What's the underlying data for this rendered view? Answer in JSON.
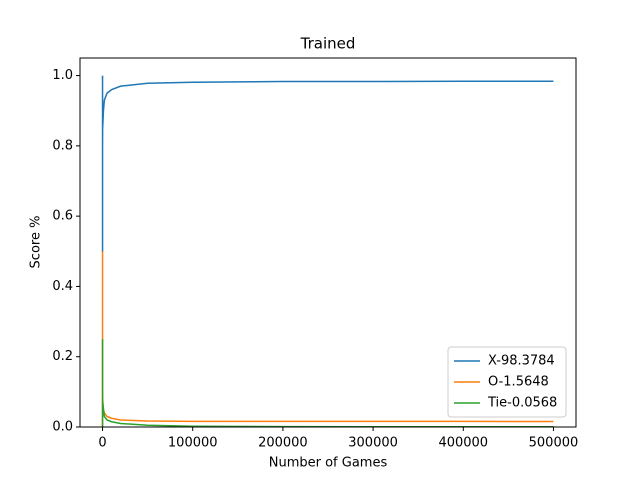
{
  "chart_data": {
    "type": "line",
    "title": "Trained",
    "x_label": "Number of Games",
    "y_label": "Score %",
    "x": [
      1,
      2,
      4,
      10,
      100,
      1000,
      2000,
      5000,
      10000,
      20000,
      50000,
      100000,
      200000,
      300000,
      400000,
      500000
    ],
    "series": [
      {
        "name": "X-98.3784",
        "color": "#1f77b4",
        "values": [
          1.0,
          0.5,
          0.5,
          0.8,
          0.85,
          0.9,
          0.93,
          0.95,
          0.96,
          0.97,
          0.978,
          0.981,
          0.983,
          0.983,
          0.984,
          0.984
        ]
      },
      {
        "name": "O-1.5648",
        "color": "#ff7f0e",
        "values": [
          0,
          0.5,
          0.25,
          0.1,
          0.08,
          0.05,
          0.04,
          0.03,
          0.025,
          0.02,
          0.017,
          0.016,
          0.016,
          0.016,
          0.016,
          0.0156
        ]
      },
      {
        "name": "Tie-0.0568",
        "color": "#2ca02c",
        "values": [
          0,
          0,
          0.25,
          0.1,
          0.07,
          0.05,
          0.03,
          0.02,
          0.015,
          0.01,
          0.005,
          0.002,
          0.001,
          0.0008,
          0.0006,
          0.00057
        ]
      }
    ],
    "xlim": [
      -25000,
      525000
    ],
    "xticks": [
      0,
      100000,
      200000,
      300000,
      400000,
      500000
    ],
    "ylim": [
      0,
      1.05
    ],
    "yticks": [
      {
        "value": 0,
        "label": "0.0"
      },
      {
        "value": 0.2,
        "label": "0.2"
      },
      {
        "value": 0.4,
        "label": "0.4"
      },
      {
        "value": 0.6,
        "label": "0.6"
      },
      {
        "value": 0.8,
        "label": "0.8"
      },
      {
        "value": 1.0,
        "label": "1.0"
      }
    ],
    "legend": "lower right"
  }
}
